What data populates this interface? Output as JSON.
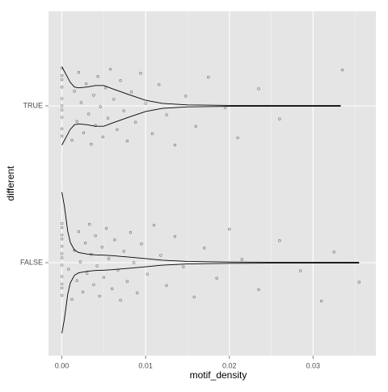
{
  "chart_data": {
    "type": "violin",
    "x_label": "motif_density",
    "y_label": "different",
    "categories": [
      "FALSE",
      "TRUE"
    ],
    "xlim": [
      -0.0016,
      0.0375
    ],
    "xticks": [
      {
        "value": 0,
        "label": "0.00"
      },
      0.01,
      0.02,
      0.03
    ],
    "minor_xticks": [
      0.005,
      0.015,
      0.025,
      0.035
    ],
    "grid": true,
    "point_color": "#000000",
    "line_color": "#000000",
    "points": [
      [
        0,
        0,
        0,
        0,
        0,
        0,
        0,
        0,
        0,
        0,
        0,
        0,
        0.0008,
        0.0012,
        0.0015,
        0.0018,
        0.002,
        0.0022,
        0.0025,
        0.0028,
        0.003,
        0.0033,
        0.0035,
        0.0038,
        0.004,
        0.0042,
        0.0045,
        0.0048,
        0.005,
        0.0053,
        0.0056,
        0.006,
        0.0063,
        0.0067,
        0.007,
        0.0074,
        0.0078,
        0.0082,
        0.0086,
        0.009,
        0.0095,
        0.0102,
        0.011,
        0.0118,
        0.0125,
        0.0135,
        0.0145,
        0.0158,
        0.017,
        0.0185,
        0.02,
        0.0215,
        0.0235,
        0.026,
        0.0285,
        0.031,
        0.0325,
        0.0355
      ],
      [
        0,
        0,
        0,
        0,
        0,
        0,
        0,
        0,
        0,
        0,
        0.0012,
        0.0015,
        0.0018,
        0.002,
        0.0023,
        0.0026,
        0.0029,
        0.0032,
        0.0035,
        0.0038,
        0.004,
        0.0043,
        0.0046,
        0.0049,
        0.0052,
        0.0055,
        0.0058,
        0.0062,
        0.0066,
        0.007,
        0.0074,
        0.0078,
        0.0083,
        0.0088,
        0.0094,
        0.01,
        0.0108,
        0.0116,
        0.0125,
        0.0135,
        0.0148,
        0.016,
        0.0175,
        0.0195,
        0.021,
        0.0235,
        0.026,
        0.0335
      ]
    ],
    "violin_x": [
      [
        0,
        0.0003,
        0.0007,
        0.001,
        0.0015,
        0.002,
        0.003,
        0.004,
        0.005,
        0.006,
        0.008,
        0.01,
        0.012,
        0.015,
        0.02,
        0.025,
        0.03,
        0.0355
      ],
      [
        0,
        0.0005,
        0.001,
        0.0015,
        0.002,
        0.003,
        0.004,
        0.005,
        0.006,
        0.008,
        0.01,
        0.012,
        0.015,
        0.02,
        0.025,
        0.0333
      ]
    ],
    "violin_width": [
      [
        0.45,
        0.36,
        0.2,
        0.13,
        0.08,
        0.065,
        0.055,
        0.05,
        0.048,
        0.045,
        0.036,
        0.026,
        0.016,
        0.008,
        0.004,
        0.003,
        0.003,
        0.002
      ],
      [
        0.25,
        0.2,
        0.15,
        0.12,
        0.115,
        0.12,
        0.13,
        0.13,
        0.11,
        0.072,
        0.036,
        0.016,
        0.006,
        0.003,
        0.002,
        0.002
      ]
    ]
  }
}
